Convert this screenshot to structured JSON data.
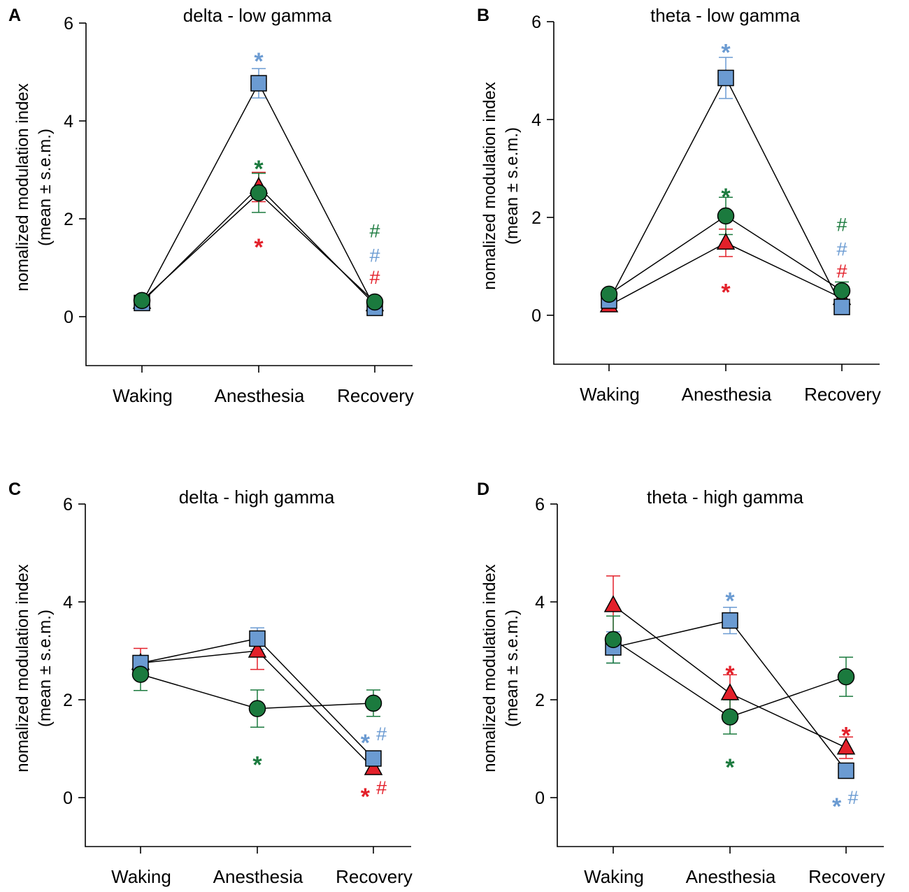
{
  "figure": {
    "y_axis_label_line1": "nomalized modulation index",
    "y_axis_label_line2": "(mean ± s.e.m.)"
  },
  "series_colors": {
    "triangle": "#e3202a",
    "square": "#6b9bd2",
    "circle": "#1b7a3e"
  },
  "chart_data": [
    {
      "type": "line",
      "panel": "A",
      "title": "delta - low gamma",
      "categories": [
        "Waking",
        "Anesthesia",
        "Recovery"
      ],
      "ylim": [
        -1,
        6
      ],
      "yticks": [
        0,
        2,
        4,
        6
      ],
      "ylabel": "nomalized modulation index (mean ± s.e.m.)",
      "series": [
        {
          "name": "triangle",
          "marker": "triangle",
          "values": [
            0.3,
            2.65,
            0.25
          ],
          "err": [
            0.05,
            0.3,
            0.05
          ]
        },
        {
          "name": "square",
          "marker": "square",
          "values": [
            0.28,
            4.77,
            0.18
          ],
          "err": [
            0.05,
            0.3,
            0.05
          ]
        },
        {
          "name": "circle",
          "marker": "circle",
          "values": [
            0.33,
            2.53,
            0.3
          ],
          "err": [
            0.05,
            0.4,
            0.05
          ]
        }
      ],
      "annotations": [
        {
          "text": "*",
          "category": 1,
          "y": 5.4,
          "color": "square"
        },
        {
          "text": "*",
          "category": 1,
          "y": 3.2,
          "color": "circle"
        },
        {
          "text": "*",
          "category": 1,
          "y": 1.6,
          "color": "triangle"
        },
        {
          "text": "#",
          "category": 2,
          "y": 1.75,
          "color": "circle"
        },
        {
          "text": "#",
          "category": 2,
          "y": 1.25,
          "color": "square"
        },
        {
          "text": "#",
          "category": 2,
          "y": 0.8,
          "color": "triangle"
        }
      ]
    },
    {
      "type": "line",
      "panel": "B",
      "title": "theta - low gamma",
      "categories": [
        "Waking",
        "Anesthesia",
        "Recovery"
      ],
      "ylim": [
        -1,
        6
      ],
      "yticks": [
        0,
        2,
        4,
        6
      ],
      "ylabel": "nomalized modulation index (mean ± s.e.m.)",
      "series": [
        {
          "name": "triangle",
          "marker": "triangle",
          "values": [
            0.2,
            1.48,
            0.35
          ],
          "err": [
            0.05,
            0.28,
            0.05
          ]
        },
        {
          "name": "square",
          "marker": "square",
          "values": [
            0.3,
            4.85,
            0.17
          ],
          "err": [
            0.05,
            0.42,
            0.05
          ]
        },
        {
          "name": "circle",
          "marker": "circle",
          "values": [
            0.43,
            2.03,
            0.5
          ],
          "err": [
            0.05,
            0.38,
            0.18
          ]
        }
      ],
      "annotations": [
        {
          "text": "*",
          "category": 1,
          "y": 5.55,
          "color": "square"
        },
        {
          "text": "*",
          "category": 1,
          "y": 2.6,
          "color": "circle"
        },
        {
          "text": "*",
          "category": 1,
          "y": 0.65,
          "color": "triangle"
        },
        {
          "text": "#",
          "category": 2,
          "y": 1.85,
          "color": "circle"
        },
        {
          "text": "#",
          "category": 2,
          "y": 1.35,
          "color": "square"
        },
        {
          "text": "#",
          "category": 2,
          "y": 0.9,
          "color": "triangle"
        }
      ]
    },
    {
      "type": "line",
      "panel": "C",
      "title": "delta - high gamma",
      "categories": [
        "Waking",
        "Anesthesia",
        "Recovery"
      ],
      "ylim": [
        -1,
        6
      ],
      "yticks": [
        0,
        2,
        4,
        6
      ],
      "ylabel": "nomalized modulation index (mean ± s.e.m.)",
      "series": [
        {
          "name": "triangle",
          "marker": "triangle",
          "values": [
            2.75,
            3.0,
            0.6
          ],
          "err": [
            0.3,
            0.38,
            0.08
          ]
        },
        {
          "name": "square",
          "marker": "square",
          "values": [
            2.75,
            3.25,
            0.8
          ],
          "err": [
            0.15,
            0.22,
            0.08
          ]
        },
        {
          "name": "circle",
          "marker": "circle",
          "values": [
            2.52,
            1.82,
            1.93
          ],
          "err": [
            0.33,
            0.38,
            0.27
          ]
        }
      ],
      "annotations": [
        {
          "text": "*",
          "category": 1,
          "y": 0.85,
          "color": "circle"
        },
        {
          "text": "*",
          "category": 2,
          "y": 1.3,
          "color": "square",
          "dx": -0.07
        },
        {
          "text": "#",
          "category": 2,
          "y": 1.3,
          "color": "square",
          "dx": 0.07
        },
        {
          "text": "*",
          "category": 2,
          "y": 0.2,
          "color": "triangle",
          "dx": -0.07
        },
        {
          "text": "#",
          "category": 2,
          "y": 0.2,
          "color": "triangle",
          "dx": 0.07
        }
      ]
    },
    {
      "type": "line",
      "panel": "D",
      "title": "theta - high gamma",
      "categories": [
        "Waking",
        "Anesthesia",
        "Recovery"
      ],
      "ylim": [
        -1,
        6
      ],
      "yticks": [
        0,
        2,
        4,
        6
      ],
      "ylabel": "nomalized modulation index (mean ± s.e.m.)",
      "series": [
        {
          "name": "triangle",
          "marker": "triangle",
          "values": [
            3.93,
            2.13,
            1.02
          ],
          "err": [
            0.6,
            0.38,
            0.22
          ]
        },
        {
          "name": "square",
          "marker": "square",
          "values": [
            3.07,
            3.62,
            0.55
          ],
          "err": [
            0.32,
            0.27,
            0.08
          ]
        },
        {
          "name": "circle",
          "marker": "circle",
          "values": [
            3.23,
            1.65,
            2.47
          ],
          "err": [
            0.48,
            0.35,
            0.4
          ]
        }
      ],
      "annotations": [
        {
          "text": "*",
          "category": 1,
          "y": 4.2,
          "color": "square"
        },
        {
          "text": "*",
          "category": 1,
          "y": 2.7,
          "color": "triangle"
        },
        {
          "text": "*",
          "category": 1,
          "y": 0.8,
          "color": "circle"
        },
        {
          "text": "*",
          "category": 2,
          "y": 1.45,
          "color": "triangle"
        },
        {
          "text": "*",
          "category": 2,
          "y": 0.0,
          "color": "square",
          "dx": -0.08
        },
        {
          "text": "#",
          "category": 2,
          "y": 0.0,
          "color": "square",
          "dx": 0.06
        }
      ]
    }
  ]
}
